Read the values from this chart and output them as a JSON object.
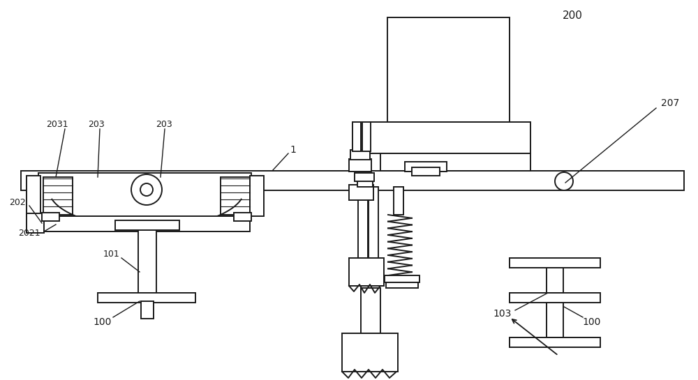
{
  "bg_color": "#ffffff",
  "lc": "#1a1a1a",
  "lw": 1.4,
  "fig_w": 10.0,
  "fig_h": 5.45,
  "dpi": 100
}
